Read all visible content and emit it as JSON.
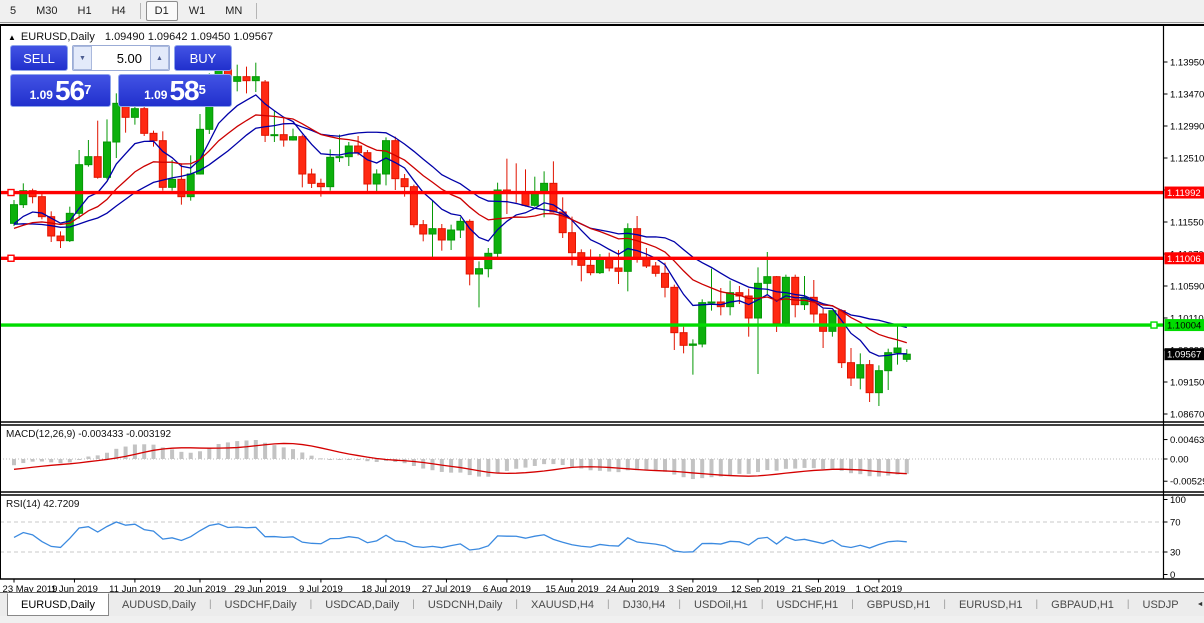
{
  "toolbar": {
    "timeframes": [
      "5",
      "M30",
      "H1",
      "H4",
      "D1",
      "W1",
      "MN"
    ],
    "active": "D1"
  },
  "chart": {
    "header": {
      "collapse_icon": "▲",
      "symbol_label": "EURUSD,Daily",
      "ohlc_text": "1.09490 1.09642 1.09450 1.09567"
    },
    "trade_panel": {
      "sell_label": "SELL",
      "buy_label": "BUY",
      "volume": "5.00",
      "spinner_down_icon": "▼",
      "spinner_up_icon": "▲",
      "sell_price": {
        "big": "1.09",
        "main": "56",
        "sup": "7"
      },
      "buy_price": {
        "big": "1.09",
        "main": "58",
        "sup": "5"
      }
    }
  },
  "chart_data": {
    "type": "candlestick",
    "symbol": "EURUSD",
    "timeframe": "Daily",
    "colors": {
      "bull": "#0cb00c",
      "bull_edge": "#059805",
      "bear": "#ff2912",
      "bear_edge": "#e01400",
      "ma_blue": "#0000a8",
      "ma_red": "#cc0000",
      "macd_bar": "#c3c3c3",
      "macd_signal": "#d40000",
      "rsi_line": "#3b8ae0",
      "level_red": "#ff0000",
      "level_green": "#00dc00",
      "axis_text": "#000000",
      "grid_dash": "#c8c8c8"
    },
    "y_axis": {
      "ticks": [
        "1.13950",
        "1.13470",
        "1.12990",
        "1.12510",
        "1.12030",
        "1.11550",
        "1.11070",
        "1.10590",
        "1.10110",
        "1.09630",
        "1.09150",
        "1.08670"
      ],
      "tick_values": [
        1.1395,
        1.1347,
        1.1299,
        1.1251,
        1.1203,
        1.1155,
        1.1107,
        1.1059,
        1.1011,
        1.0963,
        1.0915,
        1.0867
      ]
    },
    "levels": [
      {
        "price": 1.11992,
        "label": "1.11992",
        "color": "#ff0000",
        "text": "#ffffff",
        "handle": "left"
      },
      {
        "price": 1.11006,
        "label": "1.11006",
        "color": "#ff0000",
        "text": "#ffffff",
        "handle": "left"
      },
      {
        "price": 1.10004,
        "label": "1.10004",
        "color": "#00dc00",
        "text": "#000000",
        "handle": "right"
      }
    ],
    "current_price": {
      "value": 1.09567,
      "label": "1.09567",
      "bg": "#000000",
      "text": "#ffffff"
    },
    "x_axis": {
      "ticks": [
        {
          "label": "23 May 2019",
          "bar": 0
        },
        {
          "label": "1 Jun 2019",
          "bar": 6.5
        },
        {
          "label": "11 Jun 2019",
          "bar": 13
        },
        {
          "label": "20 Jun 2019",
          "bar": 20
        },
        {
          "label": "29 Jun 2019",
          "bar": 26.5
        },
        {
          "label": "9 Jul 2019",
          "bar": 33
        },
        {
          "label": "18 Jul 2019",
          "bar": 40
        },
        {
          "label": "27 Jul 2019",
          "bar": 46.5
        },
        {
          "label": "6 Aug 2019",
          "bar": 53
        },
        {
          "label": "15 Aug 2019",
          "bar": 60
        },
        {
          "label": "24 Aug 2019",
          "bar": 66.5
        },
        {
          "label": "3 Sep 2019",
          "bar": 73
        },
        {
          "label": "12 Sep 2019",
          "bar": 80
        },
        {
          "label": "21 Sep 2019",
          "bar": 86.5
        },
        {
          "label": "1 Oct 2019",
          "bar": 93
        }
      ]
    },
    "moving_averages": [
      {
        "name": "fast-ma",
        "type": "ema",
        "period": 8,
        "color": "#0000a8"
      },
      {
        "name": "mid-ma",
        "type": "sma",
        "period": 20,
        "color": "#0000a8"
      },
      {
        "name": "slow-ma",
        "type": "lwma",
        "period": 20,
        "color": "#cc0000"
      }
    ],
    "macd": {
      "label": "MACD(12,26,9) -0.003433 -0.003192",
      "fast": 12,
      "slow": 26,
      "signal": 9,
      "main_value": -0.003433,
      "signal_value": -0.003192,
      "ticks": [
        {
          "v": 0.00463,
          "label": "0.00463"
        },
        {
          "v": 0,
          "label": "0.00"
        },
        {
          "v": -0.00529,
          "label": "-0.00529"
        }
      ]
    },
    "rsi": {
      "label": "RSI(14) 42.7209",
      "period": 14,
      "value": 42.7209,
      "levels": [
        70,
        30
      ],
      "ticks": [
        {
          "v": 100,
          "label": "100"
        },
        {
          "v": 70,
          "label": "70"
        },
        {
          "v": 30,
          "label": "30"
        },
        {
          "v": 0,
          "label": "0"
        }
      ]
    },
    "candles": [
      [
        "2019-05-23",
        1.1153,
        1.1188,
        1.1149,
        1.1181
      ],
      [
        "2019-05-24",
        1.1181,
        1.1213,
        1.1176,
        1.1202
      ],
      [
        "2019-05-27",
        1.1202,
        1.1205,
        1.1183,
        1.1193
      ],
      [
        "2019-05-28",
        1.1193,
        1.1197,
        1.1159,
        1.1163
      ],
      [
        "2019-05-29",
        1.1163,
        1.1171,
        1.1125,
        1.1134
      ],
      [
        "2019-05-30",
        1.1134,
        1.1141,
        1.1116,
        1.1127
      ],
      [
        "2019-05-31",
        1.1127,
        1.1178,
        1.1125,
        1.1168
      ],
      [
        "2019-06-03",
        1.1168,
        1.1263,
        1.116,
        1.1241
      ],
      [
        "2019-06-04",
        1.1241,
        1.1278,
        1.1238,
        1.1253
      ],
      [
        "2019-06-05",
        1.1253,
        1.1307,
        1.122,
        1.1222
      ],
      [
        "2019-06-06",
        1.1222,
        1.1309,
        1.1219,
        1.1275
      ],
      [
        "2019-06-07",
        1.1275,
        1.1348,
        1.1251,
        1.1333
      ],
      [
        "2019-06-10",
        1.1333,
        1.1334,
        1.1289,
        1.1312
      ],
      [
        "2019-06-11",
        1.1312,
        1.1338,
        1.1301,
        1.1325
      ],
      [
        "2019-06-12",
        1.1325,
        1.1344,
        1.1284,
        1.1288
      ],
      [
        "2019-06-13",
        1.1288,
        1.1292,
        1.1268,
        1.1277
      ],
      [
        "2019-06-14",
        1.1277,
        1.1291,
        1.1202,
        1.1207
      ],
      [
        "2019-06-17",
        1.1207,
        1.1248,
        1.1202,
        1.1219
      ],
      [
        "2019-06-18",
        1.1219,
        1.1243,
        1.1181,
        1.1193
      ],
      [
        "2019-06-19",
        1.1193,
        1.1255,
        1.1187,
        1.1227
      ],
      [
        "2019-06-20",
        1.1227,
        1.1317,
        1.1226,
        1.1294
      ],
      [
        "2019-06-21",
        1.1294,
        1.1378,
        1.1287,
        1.1369
      ],
      [
        "2019-06-24",
        1.1369,
        1.1404,
        1.1364,
        1.1399
      ],
      [
        "2019-06-25",
        1.1399,
        1.1412,
        1.1344,
        1.1366
      ],
      [
        "2019-06-26",
        1.1366,
        1.1391,
        1.1351,
        1.1373
      ],
      [
        "2019-06-27",
        1.1373,
        1.1388,
        1.1348,
        1.1367
      ],
      [
        "2019-06-28",
        1.1367,
        1.1394,
        1.135,
        1.1373
      ],
      [
        "2019-07-01",
        1.1365,
        1.1368,
        1.1275,
        1.1285
      ],
      [
        "2019-07-02",
        1.1285,
        1.1322,
        1.1275,
        1.1286
      ],
      [
        "2019-07-03",
        1.1286,
        1.1312,
        1.1268,
        1.1278
      ],
      [
        "2019-07-04",
        1.1278,
        1.1295,
        1.1277,
        1.1283
      ],
      [
        "2019-07-05",
        1.1283,
        1.1286,
        1.1207,
        1.1227
      ],
      [
        "2019-07-08",
        1.1227,
        1.1235,
        1.1206,
        1.1213
      ],
      [
        "2019-07-09",
        1.1213,
        1.122,
        1.1193,
        1.1208
      ],
      [
        "2019-07-10",
        1.1208,
        1.1264,
        1.1202,
        1.1252
      ],
      [
        "2019-07-11",
        1.1252,
        1.1286,
        1.1245,
        1.1253
      ],
      [
        "2019-07-12",
        1.1253,
        1.1275,
        1.1239,
        1.1269
      ],
      [
        "2019-07-15",
        1.1269,
        1.1284,
        1.1255,
        1.1259
      ],
      [
        "2019-07-16",
        1.1259,
        1.1263,
        1.1201,
        1.1212
      ],
      [
        "2019-07-17",
        1.1212,
        1.1234,
        1.1198,
        1.1227
      ],
      [
        "2019-07-18",
        1.1227,
        1.1282,
        1.121,
        1.1277
      ],
      [
        "2019-07-19",
        1.1277,
        1.1283,
        1.1203,
        1.122
      ],
      [
        "2019-07-22",
        1.122,
        1.1227,
        1.1193,
        1.1208
      ],
      [
        "2019-07-23",
        1.1208,
        1.1211,
        1.1147,
        1.1151
      ],
      [
        "2019-07-24",
        1.1151,
        1.1158,
        1.1126,
        1.1137
      ],
      [
        "2019-07-25",
        1.1137,
        1.1187,
        1.1101,
        1.1145
      ],
      [
        "2019-07-26",
        1.1145,
        1.1152,
        1.1112,
        1.1128
      ],
      [
        "2019-07-29",
        1.1128,
        1.1151,
        1.1113,
        1.1143
      ],
      [
        "2019-07-30",
        1.1143,
        1.1162,
        1.1131,
        1.1156
      ],
      [
        "2019-07-31",
        1.1156,
        1.1159,
        1.106,
        1.1077
      ],
      [
        "2019-08-01",
        1.1077,
        1.1096,
        1.1027,
        1.1085
      ],
      [
        "2019-08-02",
        1.1085,
        1.1116,
        1.1072,
        1.1108
      ],
      [
        "2019-08-05",
        1.1108,
        1.1214,
        1.1101,
        1.1203
      ],
      [
        "2019-08-06",
        1.1203,
        1.125,
        1.1167,
        1.12
      ],
      [
        "2019-08-07",
        1.12,
        1.1243,
        1.1184,
        1.1199
      ],
      [
        "2019-08-08",
        1.1199,
        1.1234,
        1.1178,
        1.118
      ],
      [
        "2019-08-09",
        1.118,
        1.1223,
        1.1178,
        1.1199
      ],
      [
        "2019-08-12",
        1.1199,
        1.1231,
        1.1162,
        1.1213
      ],
      [
        "2019-08-13",
        1.1213,
        1.1246,
        1.1169,
        1.117
      ],
      [
        "2019-08-14",
        1.117,
        1.1192,
        1.1131,
        1.1139
      ],
      [
        "2019-08-15",
        1.1139,
        1.1163,
        1.109,
        1.1109
      ],
      [
        "2019-08-16",
        1.1109,
        1.1114,
        1.1066,
        1.109
      ],
      [
        "2019-08-19",
        1.109,
        1.1114,
        1.1075,
        1.1079
      ],
      [
        "2019-08-20",
        1.1079,
        1.1107,
        1.1077,
        1.1099
      ],
      [
        "2019-08-21",
        1.1099,
        1.1109,
        1.1081,
        1.1086
      ],
      [
        "2019-08-22",
        1.1086,
        1.1113,
        1.1062,
        1.1081
      ],
      [
        "2019-08-23",
        1.1081,
        1.1153,
        1.1051,
        1.1145
      ],
      [
        "2019-08-26",
        1.1145,
        1.1164,
        1.1094,
        1.1101
      ],
      [
        "2019-08-27",
        1.1101,
        1.1116,
        1.1086,
        1.1089
      ],
      [
        "2019-08-28",
        1.1089,
        1.1095,
        1.1073,
        1.1078
      ],
      [
        "2019-08-29",
        1.1078,
        1.1094,
        1.1042,
        1.1057
      ],
      [
        "2019-08-30",
        1.1057,
        1.1061,
        1.0963,
        1.0989
      ],
      [
        "2019-09-02",
        1.0989,
        1.0998,
        1.0958,
        1.097
      ],
      [
        "2019-09-03",
        1.097,
        1.0979,
        1.0926,
        1.0972
      ],
      [
        "2019-09-04",
        1.0972,
        1.1039,
        1.0967,
        1.1034
      ],
      [
        "2019-09-05",
        1.1034,
        1.1085,
        1.1022,
        1.1035
      ],
      [
        "2019-09-06",
        1.1035,
        1.1056,
        1.1015,
        1.1028
      ],
      [
        "2019-09-09",
        1.1028,
        1.1067,
        1.1015,
        1.1049
      ],
      [
        "2019-09-10",
        1.1049,
        1.1059,
        1.1032,
        1.1044
      ],
      [
        "2019-09-11",
        1.1044,
        1.1055,
        1.0983,
        1.1011
      ],
      [
        "2019-09-12",
        1.1011,
        1.1087,
        1.0927,
        1.1063
      ],
      [
        "2019-09-13",
        1.1063,
        1.111,
        1.1045,
        1.1073
      ],
      [
        "2019-09-16",
        1.1073,
        1.1074,
        1.099,
        1.1003
      ],
      [
        "2019-09-17",
        1.1003,
        1.1076,
        1.0998,
        1.1072
      ],
      [
        "2019-09-18",
        1.1072,
        1.1076,
        1.1012,
        1.1031
      ],
      [
        "2019-09-19",
        1.1031,
        1.1074,
        1.1023,
        1.1042
      ],
      [
        "2019-09-20",
        1.1042,
        1.1068,
        1.1004,
        1.1017
      ],
      [
        "2019-09-23",
        1.1017,
        1.1025,
        1.0966,
        1.0991
      ],
      [
        "2019-09-24",
        1.0991,
        1.1022,
        1.0983,
        1.1022
      ],
      [
        "2019-09-25",
        1.1022,
        1.1024,
        1.0936,
        1.0944
      ],
      [
        "2019-09-26",
        1.0944,
        1.0966,
        1.0909,
        1.0921
      ],
      [
        "2019-09-27",
        1.0921,
        1.0958,
        1.0904,
        1.0941
      ],
      [
        "2019-09-30",
        1.0941,
        1.0948,
        1.0885,
        1.0899
      ],
      [
        "2019-10-01",
        1.0899,
        1.094,
        1.0879,
        1.0932
      ],
      [
        "2019-10-02",
        1.0932,
        1.0965,
        1.0903,
        1.0959
      ],
      [
        "2019-10-03",
        1.0959,
        1.0999,
        1.0941,
        1.0966
      ],
      [
        "2019-10-04",
        1.0949,
        1.09642,
        1.0945,
        1.09567
      ]
    ]
  },
  "tabs": {
    "separator": "|",
    "scroll_left_icon": "◄",
    "scroll_right_icon": "►",
    "active_index": 0,
    "items": [
      {
        "label": "EURUSD,Daily"
      },
      {
        "label": "AUDUSD,Daily"
      },
      {
        "label": "USDCHF,Daily"
      },
      {
        "label": "USDCAD,Daily"
      },
      {
        "label": "USDCNH,Daily"
      },
      {
        "label": "XAUUSD,H4"
      },
      {
        "label": "DJ30,H4"
      },
      {
        "label": "USDOil,H1"
      },
      {
        "label": "USDCHF,H1"
      },
      {
        "label": "GBPUSD,H1"
      },
      {
        "label": "EURUSD,H1"
      },
      {
        "label": "GBPAUD,H1"
      },
      {
        "label": "USDJP"
      }
    ]
  }
}
